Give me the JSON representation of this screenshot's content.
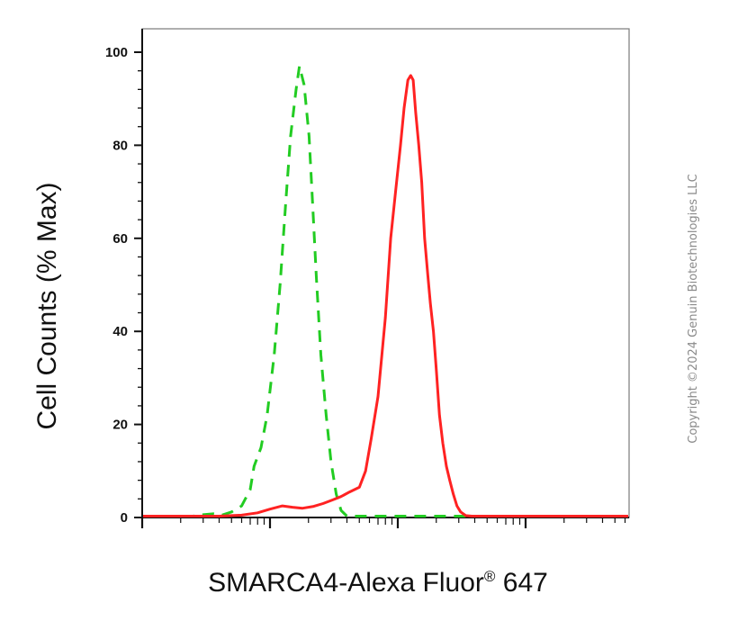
{
  "chart_data": {
    "type": "line",
    "xlabel_main": "SMARCA4-Alexa Fluor",
    "xlabel_reg": "®",
    "xlabel_tail": " 647",
    "ylabel": "Cell Counts (% Max)",
    "ylim": [
      0,
      100
    ],
    "y_ticks": [
      "0",
      "20",
      "40",
      "60",
      "80",
      "100"
    ],
    "x_scale": "log",
    "x_decades": [
      1,
      10,
      100,
      1000,
      10000
    ],
    "grid": false,
    "series": [
      {
        "color": "#22cc22",
        "style": "dashed",
        "points": [
          [
            1.0,
            0
          ],
          [
            2.5,
            0
          ],
          [
            3.0,
            0.6
          ],
          [
            3.6,
            0.8
          ],
          [
            4.2,
            0.5
          ],
          [
            5.0,
            1.2
          ],
          [
            6.0,
            2.5
          ],
          [
            7.0,
            6
          ],
          [
            7.5,
            11
          ],
          [
            8.5,
            15
          ],
          [
            9.5,
            22
          ],
          [
            10.8,
            35
          ],
          [
            12.0,
            50
          ],
          [
            13.3,
            68
          ],
          [
            14.5,
            82
          ],
          [
            16.0,
            92
          ],
          [
            17.0,
            97
          ],
          [
            18.5,
            93
          ],
          [
            20.2,
            82
          ],
          [
            21.5,
            68
          ],
          [
            23.0,
            52
          ],
          [
            25.0,
            35
          ],
          [
            27.5,
            22
          ],
          [
            30.0,
            12
          ],
          [
            33.0,
            5
          ],
          [
            36.0,
            1.5
          ],
          [
            40.0,
            0
          ],
          [
            2000,
            0
          ]
        ]
      },
      {
        "color": "#ff2222",
        "style": "solid",
        "points": [
          [
            1.0,
            0
          ],
          [
            4.0,
            0
          ],
          [
            6.0,
            0.5
          ],
          [
            8.0,
            1
          ],
          [
            10.0,
            1.8
          ],
          [
            12.5,
            2.5
          ],
          [
            15.0,
            2.2
          ],
          [
            18.0,
            2
          ],
          [
            22.0,
            2.4
          ],
          [
            26.0,
            3
          ],
          [
            31.0,
            3.8
          ],
          [
            36.0,
            4.5
          ],
          [
            42.0,
            5.5
          ],
          [
            50.0,
            6.5
          ],
          [
            56.0,
            10
          ],
          [
            62.0,
            17
          ],
          [
            70.0,
            26
          ],
          [
            80.0,
            43
          ],
          [
            88.0,
            60
          ],
          [
            96.0,
            70
          ],
          [
            105.0,
            80
          ],
          [
            112.0,
            88
          ],
          [
            120.0,
            94
          ],
          [
            126.0,
            95
          ],
          [
            132.0,
            94
          ],
          [
            138.0,
            87
          ],
          [
            146.0,
            80
          ],
          [
            154.0,
            72
          ],
          [
            162.0,
            60
          ],
          [
            172.0,
            52
          ],
          [
            180.0,
            46
          ],
          [
            190.0,
            40
          ],
          [
            200.0,
            32
          ],
          [
            212.0,
            22
          ],
          [
            225.0,
            16
          ],
          [
            240.0,
            11
          ],
          [
            255.0,
            8
          ],
          [
            272.0,
            5
          ],
          [
            290.0,
            2.5
          ],
          [
            310.0,
            1.2
          ],
          [
            340.0,
            0.4
          ],
          [
            380.0,
            0
          ],
          [
            10000,
            0
          ]
        ]
      }
    ]
  },
  "copyright": "Copyright ©2024 Genuin Biotechnologies LLC"
}
